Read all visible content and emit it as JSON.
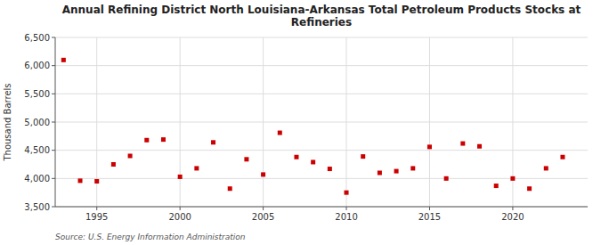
{
  "chart_data": {
    "type": "scatter",
    "title": "Annual Refining District North Louisiana-Arkansas Total Petroleum Products Stocks at\nRefineries",
    "ylabel": "Thousand Barrels",
    "annotations": [
      "Source: U.S. Energy Information Administration"
    ],
    "color": "#cc0000",
    "marker": "square",
    "grid": true,
    "xlim": [
      1992.5,
      2024.5
    ],
    "xticks": [
      1995,
      2000,
      2005,
      2010,
      2015,
      2020
    ],
    "ylim": [
      3500,
      6500
    ],
    "yticks": [
      {
        "value": 3500,
        "label": "3,500"
      },
      {
        "value": 4000,
        "label": "4,000"
      },
      {
        "value": 4500,
        "label": "4,500"
      },
      {
        "value": 5000,
        "label": "5,000"
      },
      {
        "value": 5500,
        "label": "5,500"
      },
      {
        "value": 6000,
        "label": "6,000"
      },
      {
        "value": 6500,
        "label": "6,500"
      }
    ],
    "x": [
      1993,
      1994,
      1995,
      1996,
      1997,
      1998,
      1999,
      2000,
      2001,
      2002,
      2003,
      2004,
      2005,
      2006,
      2007,
      2008,
      2009,
      2010,
      2011,
      2012,
      2013,
      2014,
      2015,
      2016,
      2017,
      2018,
      2019,
      2020,
      2021,
      2022,
      2023
    ],
    "values": [
      6100,
      3960,
      3950,
      4250,
      4400,
      4680,
      4690,
      4030,
      4180,
      4640,
      3820,
      4340,
      4070,
      4810,
      4380,
      4290,
      4170,
      3750,
      4390,
      4100,
      4130,
      4180,
      4560,
      4000,
      4620,
      4570,
      3870,
      4000,
      3820,
      4180,
      4380
    ]
  }
}
